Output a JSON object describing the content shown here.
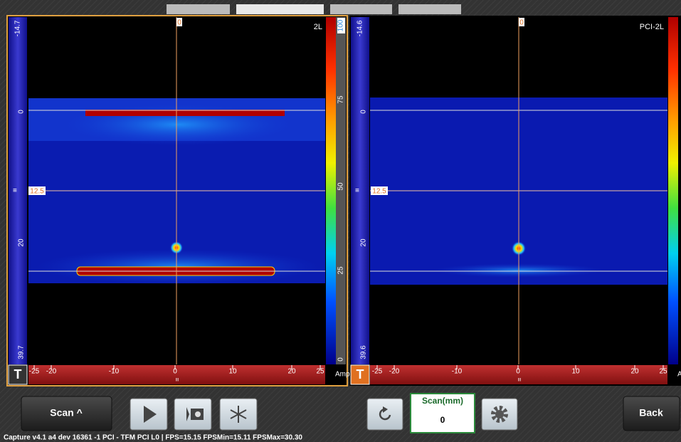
{
  "tabs": 4,
  "left_panel": {
    "depth_top": "-14.7",
    "cursor": "0",
    "mode": "2L",
    "depth_ticks": [
      "0",
      "20",
      "39.7"
    ],
    "gate_depth": "12.5",
    "amp_ticks": [
      "100",
      "75",
      "50",
      "25",
      "0"
    ],
    "amp_label": "Amp",
    "x_ticks": [
      "-25",
      "-20",
      "-10",
      "0",
      "10",
      "20",
      "25"
    ],
    "marker": "T",
    "center_mark": "III"
  },
  "right_panel": {
    "depth_top": "-14.6",
    "cursor": "0",
    "mode": "PCI-2L",
    "depth_ticks": [
      "0",
      "20",
      "39.6"
    ],
    "gate_depth": "12.5",
    "amp_label": "Amp",
    "x_ticks": [
      "-25",
      "-20",
      "-10",
      "0",
      "10",
      "20",
      "25"
    ],
    "marker": "T",
    "center_mark": "III"
  },
  "toolbar": {
    "scan_button": "Scan ^",
    "scan_label": "Scan(mm)",
    "scan_value": "0",
    "back": "Back"
  },
  "status": "Capture v4.1 a4 dev 16361 -1 PCI - TFM PCI L0 | FPS=15.15  FPSMin=15.11  FPSMax=30.30"
}
